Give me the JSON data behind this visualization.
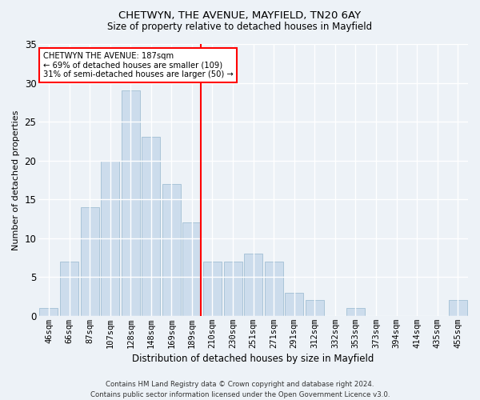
{
  "title_line1": "CHETWYN, THE AVENUE, MAYFIELD, TN20 6AY",
  "title_line2": "Size of property relative to detached houses in Mayfield",
  "xlabel": "Distribution of detached houses by size in Mayfield",
  "ylabel": "Number of detached properties",
  "footer": "Contains HM Land Registry data © Crown copyright and database right 2024.\nContains public sector information licensed under the Open Government Licence v3.0.",
  "categories": [
    "46sqm",
    "66sqm",
    "87sqm",
    "107sqm",
    "128sqm",
    "148sqm",
    "169sqm",
    "189sqm",
    "210sqm",
    "230sqm",
    "251sqm",
    "271sqm",
    "291sqm",
    "312sqm",
    "332sqm",
    "353sqm",
    "373sqm",
    "394sqm",
    "414sqm",
    "435sqm",
    "455sqm"
  ],
  "values": [
    1,
    7,
    14,
    20,
    29,
    23,
    17,
    12,
    7,
    7,
    8,
    7,
    3,
    2,
    0,
    1,
    0,
    0,
    0,
    0,
    2
  ],
  "bar_color": "#ccdcec",
  "bar_edge_color": "#aac4d8",
  "annotation_box_text": "CHETWYN THE AVENUE: 187sqm\n← 69% of detached houses are smaller (109)\n31% of semi-detached houses are larger (50) →",
  "annotation_box_color": "white",
  "annotation_box_edge_color": "red",
  "vline_color": "red",
  "vline_x_index": 7.42,
  "background_color": "#edf2f7",
  "grid_color": "white",
  "ylim": [
    0,
    35
  ],
  "yticks": [
    0,
    5,
    10,
    15,
    20,
    25,
    30,
    35
  ],
  "title1_fontsize": 9.5,
  "title2_fontsize": 8.5,
  "xlabel_fontsize": 8.5,
  "ylabel_fontsize": 8.0,
  "tick_fontsize": 7.5,
  "footer_fontsize": 6.2
}
